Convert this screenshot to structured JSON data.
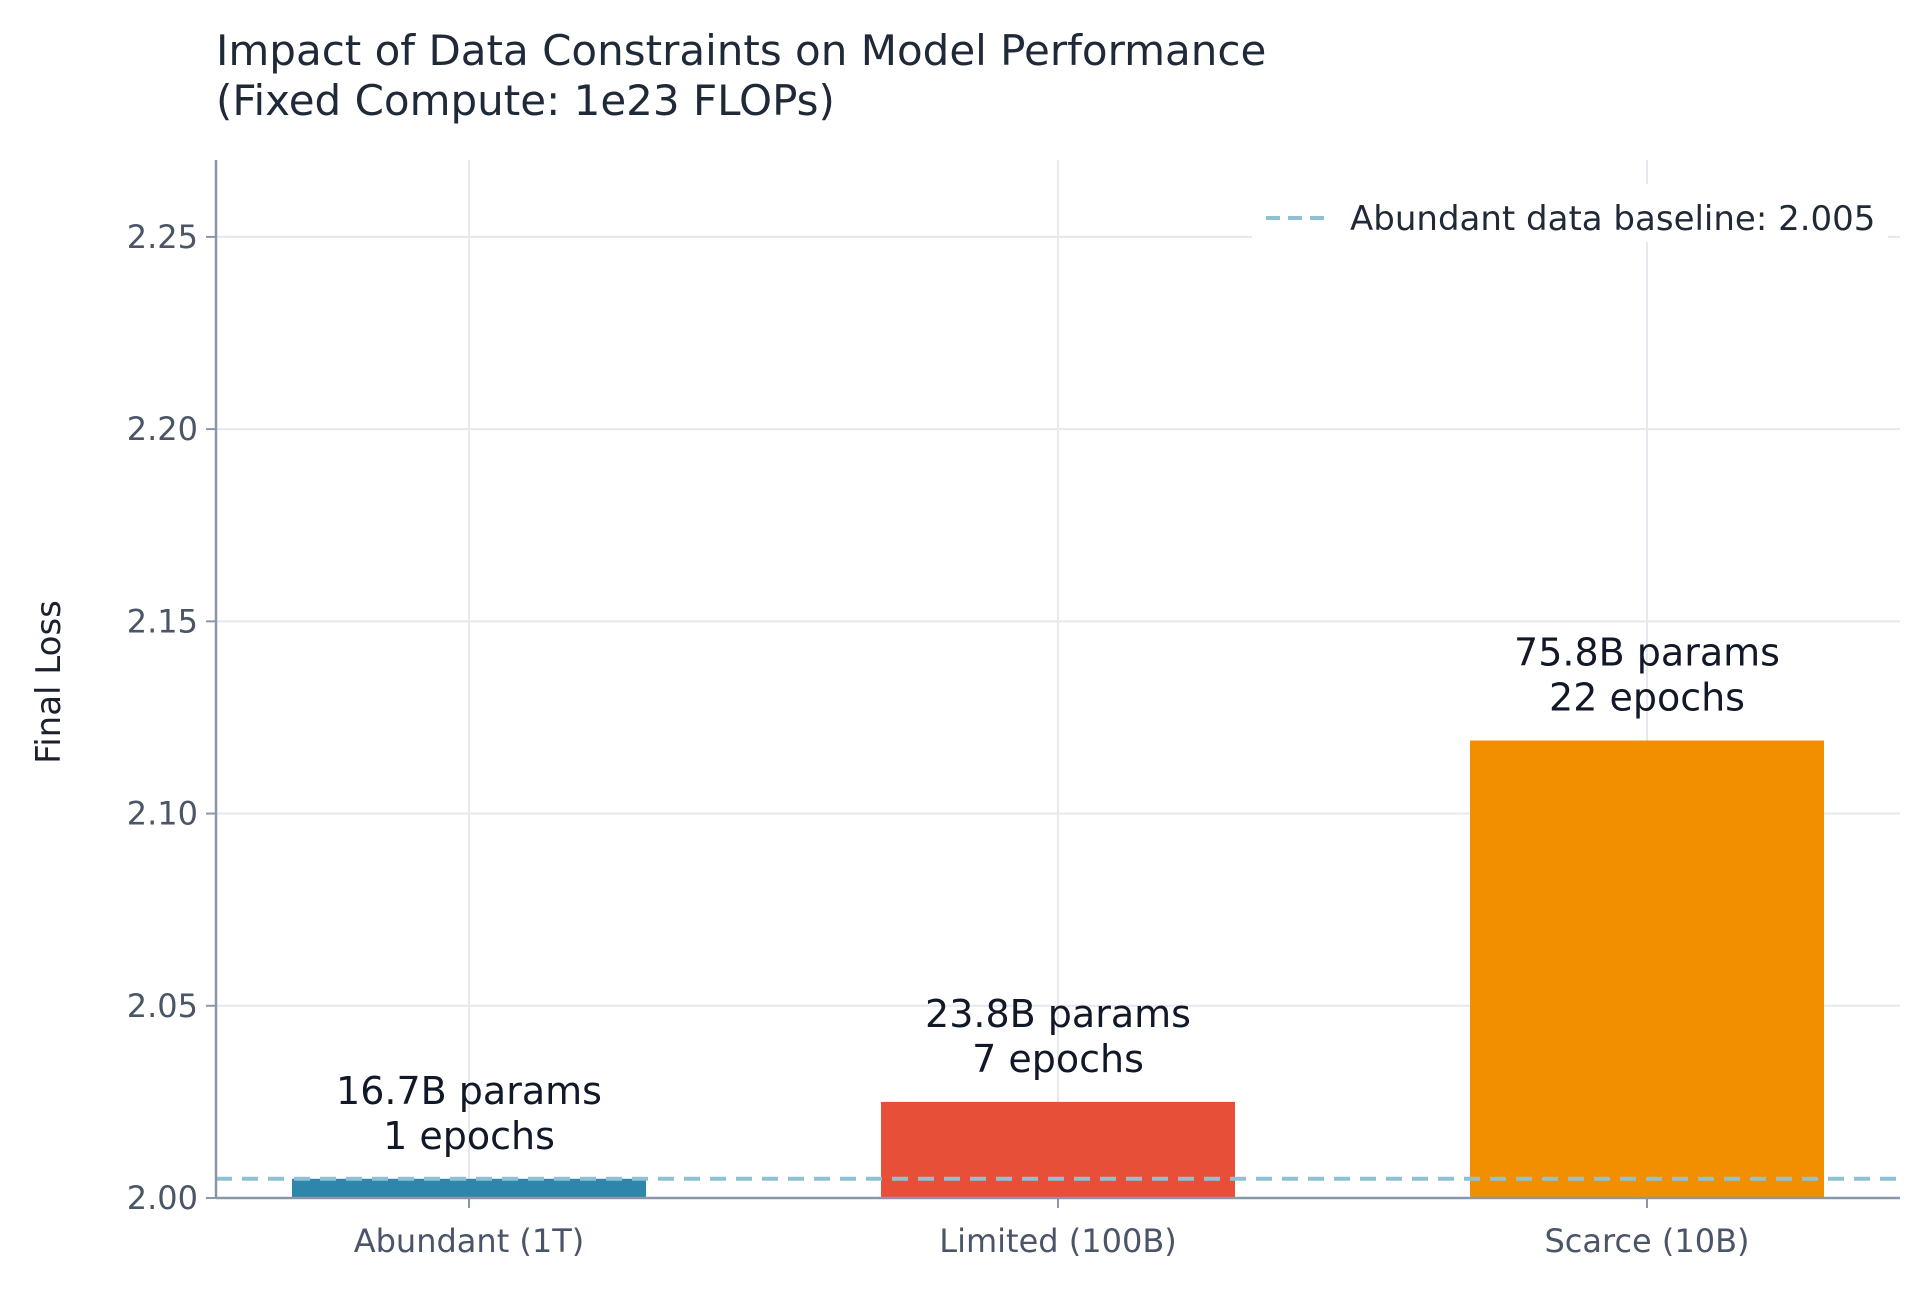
{
  "chart_data": {
    "type": "bar",
    "title": "Impact of Data Constraints on Model Performance",
    "subtitle": "(Fixed Compute: 1e23 FLOPs)",
    "xlabel": "",
    "ylabel": "Final Loss",
    "categories": [
      "Abundant (1T)",
      "Limited (100B)",
      "Scarce (10B)"
    ],
    "values": [
      2.005,
      2.025,
      2.119
    ],
    "bar_colors": [
      "#2e86ab",
      "#e84f38",
      "#f18f01"
    ],
    "bar_labels": [
      {
        "params": "16.7B params",
        "epochs": "1 epochs"
      },
      {
        "params": "23.8B params",
        "epochs": "7 epochs"
      },
      {
        "params": "75.8B params",
        "epochs": "22 epochs"
      }
    ],
    "ylim": [
      2.0,
      2.27
    ],
    "yticks": [
      2.0,
      2.05,
      2.1,
      2.15,
      2.2,
      2.25
    ],
    "ytick_labels": [
      "2.00",
      "2.05",
      "2.10",
      "2.15",
      "2.20",
      "2.25"
    ],
    "grid": true,
    "baseline": {
      "value": 2.005,
      "label": "Abundant data baseline: 2.005",
      "color": "#8fc1d4",
      "style": "dashed"
    },
    "legend": {
      "position": "top-right",
      "entries": [
        "Abundant data baseline: 2.005"
      ]
    }
  }
}
